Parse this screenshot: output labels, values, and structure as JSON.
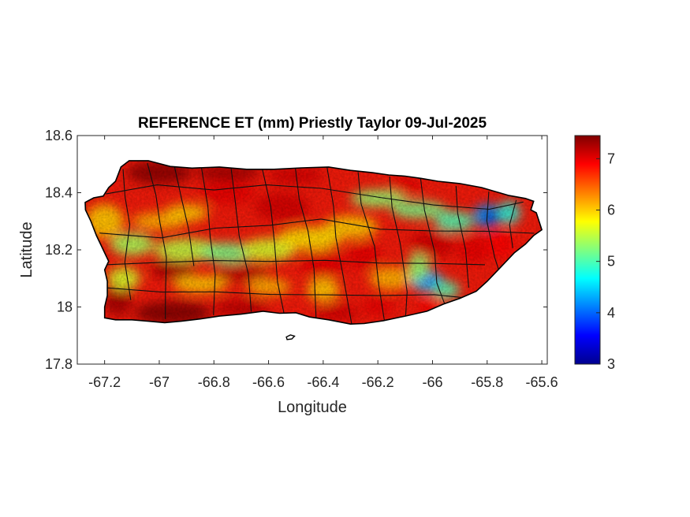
{
  "chart_data": {
    "type": "heatmap",
    "title": "REFERENCE ET (mm) Priestly Taylor 09-Jul-2025",
    "xlabel": "Longitude",
    "ylabel": "Latitude",
    "xlim": [
      -67.3,
      -65.58
    ],
    "ylim": [
      17.8,
      18.6
    ],
    "xticks": [
      -67.2,
      -67,
      -66.8,
      -66.6,
      -66.4,
      -66.2,
      -66,
      -65.8,
      -65.6
    ],
    "xtick_labels": [
      "-67.2",
      "-67",
      "-66.8",
      "-66.6",
      "-66.4",
      "-66.2",
      "-66",
      "-65.8",
      "-65.6"
    ],
    "yticks": [
      17.8,
      18,
      18.2,
      18.4,
      18.6
    ],
    "ytick_labels": [
      "17.8",
      "18",
      "18.2",
      "18.4",
      "18.6"
    ],
    "colorbar": {
      "colormap": "jet",
      "range": [
        3,
        7.45
      ],
      "ticks": [
        3,
        4,
        5,
        6,
        7
      ],
      "tick_labels": [
        "3",
        "4",
        "5",
        "6",
        "7"
      ]
    },
    "grid": false,
    "region": "Puerto Rico, municipality boundaries overlaid",
    "field_summary": {
      "north_and_south_coasts": 7.2,
      "central_interior_bands": 5.9,
      "west_central_valley": 5.2,
      "northeast_minimum": 3.5,
      "southeast_minimum": 3.9
    }
  }
}
